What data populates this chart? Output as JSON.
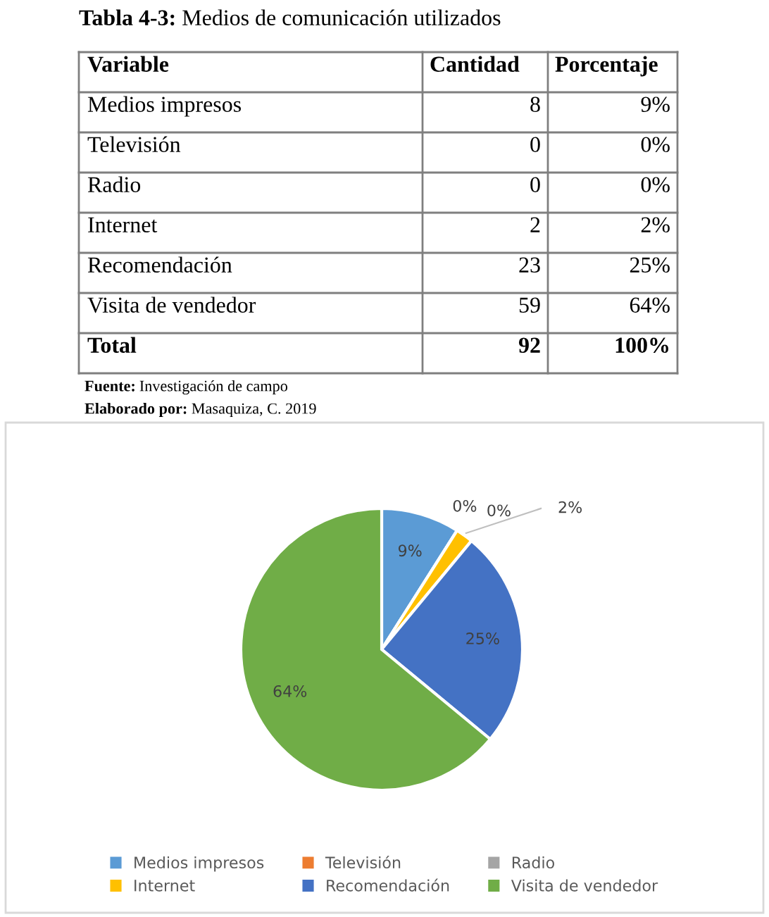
{
  "chart_data": {
    "type": "pie",
    "title": "Tabla 4-3: Medios de comunicación utilizados",
    "categories": [
      "Medios impresos",
      "Televisión",
      "Radio",
      "Internet",
      "Recomendación",
      "Visita de vendedor"
    ],
    "values": [
      9,
      0,
      0,
      2,
      25,
      64
    ],
    "value_labels": [
      "9%",
      "0%",
      "0%",
      "2%",
      "25%",
      "64%"
    ],
    "colors": [
      "#5b9bd5",
      "#ed7d31",
      "#a5a5a5",
      "#ffc000",
      "#4472c4",
      "#70ad47"
    ],
    "annotations": [
      "Variable",
      "Cantidad",
      "Porcentaje",
      "8",
      "0",
      "0",
      "2",
      "23",
      "59",
      "Total",
      "92",
      "100%",
      "Fuente: Investigación de campo",
      "Elaborado por: Masaquiza, C. 2019"
    ],
    "legend": "bottom"
  }
}
